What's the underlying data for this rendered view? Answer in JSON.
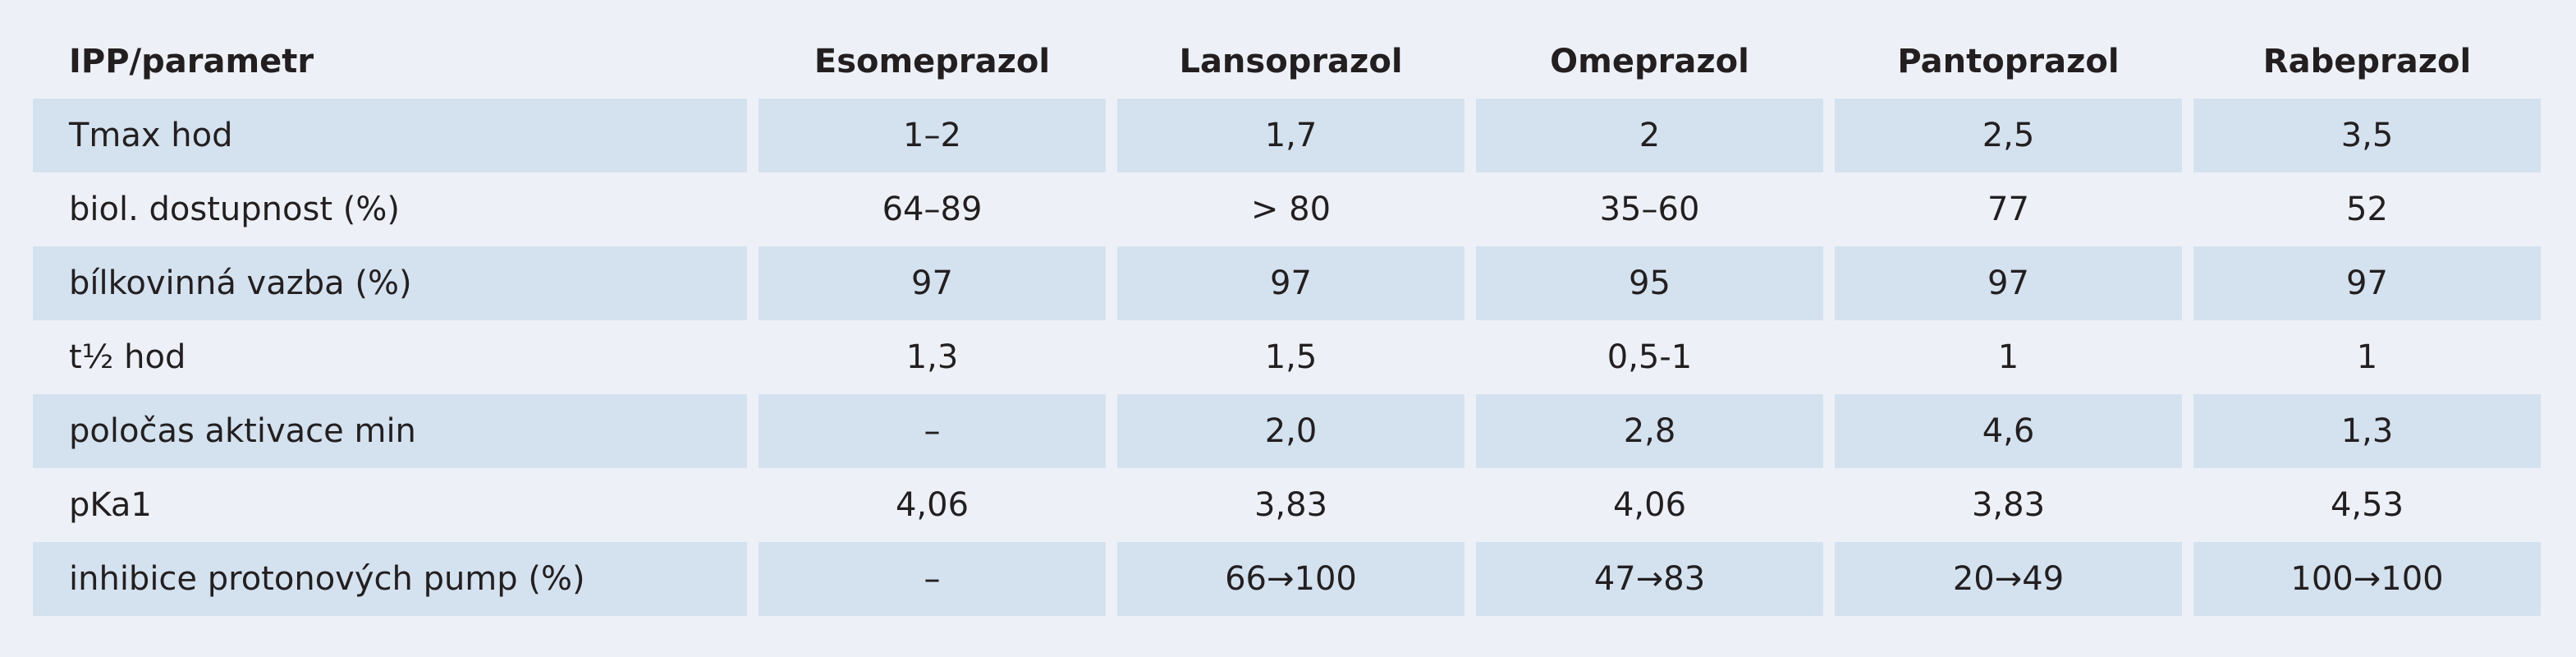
{
  "table": {
    "header": [
      "IPP/parametr",
      "Esomeprazol",
      "Lansoprazol",
      "Omeprazol",
      "Pantoprazol",
      "Rabeprazol"
    ],
    "rows": [
      [
        "Tmax hod",
        "1–2",
        "1,7",
        "2",
        "2,5",
        "3,5"
      ],
      [
        "biol. dostupnost (%)",
        "64–89",
        "> 80",
        "35–60",
        "77",
        "52"
      ],
      [
        "bílkovinná vazba (%)",
        "97",
        "97",
        "95",
        "97",
        "97"
      ],
      [
        "t½ hod",
        "1,3",
        "1,5",
        "0,5-1",
        "1",
        "1"
      ],
      [
        "poločas aktivace min",
        "–",
        "2,0",
        "2,8",
        "4,6",
        "1,3"
      ],
      [
        "pKa1",
        "4,06",
        "3,83",
        "4,06",
        "3,83",
        "4,53"
      ],
      [
        "inhibice protonových pump (%)",
        "–",
        "66→100",
        "47→83",
        "20→49",
        "100→100"
      ]
    ]
  }
}
